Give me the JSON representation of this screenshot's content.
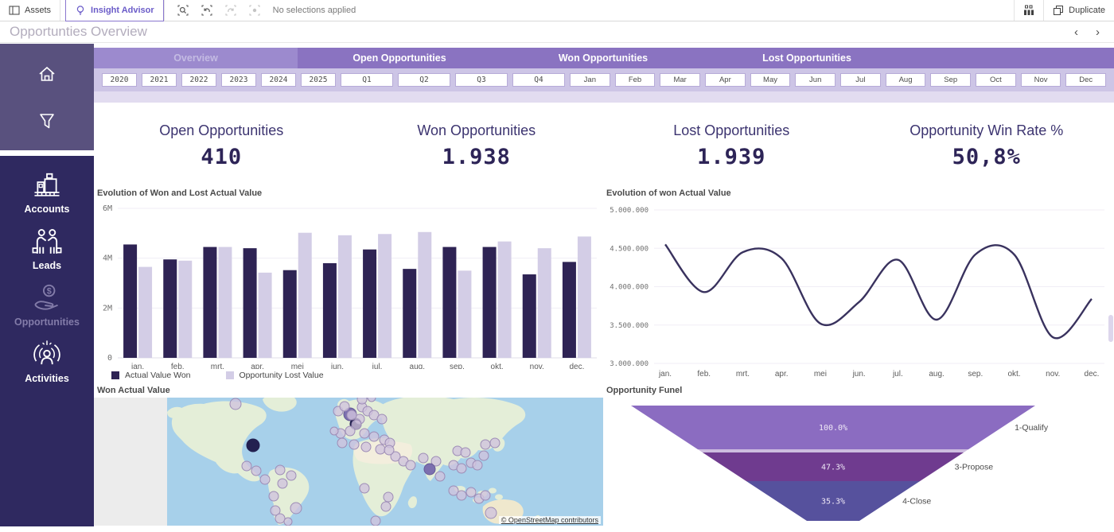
{
  "toolbar": {
    "assets_label": "Assets",
    "insight_label": "Insight Advisor",
    "no_selections": "No selections applied",
    "duplicate_label": "Duplicate",
    "selection_icons": [
      "search-selections",
      "step-back",
      "step-forward",
      "clear-selections"
    ]
  },
  "title_bar": {
    "title": "Opportunties Overview",
    "nav_prev": "‹",
    "nav_next": "›"
  },
  "sidebar": {
    "items": [
      {
        "label": "Accounts",
        "icon": "factory-icon",
        "active": false
      },
      {
        "label": "Leads",
        "icon": "handshake-icon",
        "active": false
      },
      {
        "label": "Opportunities",
        "icon": "hand-coin-icon",
        "active": true
      },
      {
        "label": "Activities",
        "icon": "person-target-icon",
        "active": false
      }
    ]
  },
  "tabs": [
    {
      "label": "Overview",
      "active": true
    },
    {
      "label": "Open Opportunities",
      "active": false
    },
    {
      "label": "Won Opportunities",
      "active": false
    },
    {
      "label": "Lost Opportunities",
      "active": false
    }
  ],
  "filters": {
    "years": [
      "2020",
      "2021",
      "2022",
      "2023",
      "2024",
      "2025"
    ],
    "quarters": [
      "Q1",
      "Q2",
      "Q3",
      "Q4"
    ],
    "months": [
      "Jan",
      "Feb",
      "Mar",
      "Apr",
      "May",
      "Jun",
      "Jul",
      "Aug",
      "Sep",
      "Oct",
      "Nov",
      "Dec"
    ]
  },
  "kpis": [
    {
      "label": "Open Opportunities",
      "value": "410"
    },
    {
      "label": "Won Opportunities",
      "value": "1.938"
    },
    {
      "label": "Lost Opportunities",
      "value": "1.939"
    },
    {
      "label": "Opportunity Win Rate %",
      "value": "50,8%"
    }
  ],
  "chart_data": [
    {
      "type": "bar",
      "title": "Evolution of Won and Lost Actual Value",
      "categories": [
        "jan.",
        "feb.",
        "mrt.",
        "apr.",
        "mei",
        "jun.",
        "jul.",
        "aug.",
        "sep.",
        "okt.",
        "nov.",
        "dec."
      ],
      "series": [
        {
          "name": "Actual Value Won",
          "color": "#2e2354",
          "values": [
            4550000,
            3950000,
            4450000,
            4400000,
            3520000,
            3800000,
            4350000,
            3570000,
            4450000,
            4450000,
            3350000,
            3850000
          ]
        },
        {
          "name": "Opportunity Lost Value",
          "color": "#d3cde6",
          "values": [
            3650000,
            3900000,
            4450000,
            3420000,
            5020000,
            4920000,
            4970000,
            5050000,
            3500000,
            4670000,
            4400000,
            4870000
          ]
        }
      ],
      "ylim": [
        0,
        6000000
      ],
      "yticks": [
        "0",
        "2M",
        "4M",
        "6M"
      ],
      "ytick_values": [
        0,
        2000000,
        4000000,
        6000000
      ],
      "grid": true,
      "legend_position": "bottom"
    },
    {
      "type": "line",
      "title": "Evolution of won Actual Value",
      "x": [
        "jan.",
        "feb.",
        "mrt.",
        "apr.",
        "mei",
        "jun.",
        "jul.",
        "aug.",
        "sep.",
        "okt.",
        "nov.",
        "dec."
      ],
      "values": [
        4550000,
        3930000,
        4450000,
        4370000,
        3520000,
        3800000,
        4350000,
        3570000,
        4420000,
        4420000,
        3340000,
        3840000
      ],
      "ylim": [
        3000000,
        5000000
      ],
      "yticks": [
        "5.000.000",
        "4.500.000",
        "4.000.000",
        "3.500.000",
        "3.000.000"
      ],
      "ytick_values": [
        5000000,
        4500000,
        4000000,
        3500000,
        3000000
      ],
      "color": "#39325e",
      "grid": true
    },
    {
      "type": "scatter",
      "title": "Won Actual Value",
      "attribution": "© OpenStreetMap contributors",
      "point_colors": {
        "normal": {
          "fill": "#cfc3dd",
          "stroke": "#9d8cb6",
          "opacity": 0.8
        },
        "dark": {
          "fill": "#232050",
          "stroke": "#232050",
          "opacity": 1
        },
        "middark": {
          "fill": "#7668ad",
          "stroke": "#655a96",
          "opacity": 0.95
        }
      },
      "points": [
        {
          "x": 86,
          "y": 8,
          "r": 7,
          "t": "normal"
        },
        {
          "x": 108,
          "y": 60,
          "r": 8,
          "t": "dark"
        },
        {
          "x": 100,
          "y": 86,
          "r": 6,
          "t": "normal"
        },
        {
          "x": 112,
          "y": 92,
          "r": 6,
          "t": "normal"
        },
        {
          "x": 123,
          "y": 103,
          "r": 6,
          "t": "normal"
        },
        {
          "x": 142,
          "y": 91,
          "r": 6,
          "t": "normal"
        },
        {
          "x": 156,
          "y": 98,
          "r": 6,
          "t": "normal"
        },
        {
          "x": 145,
          "y": 108,
          "r": 6,
          "t": "normal"
        },
        {
          "x": 134,
          "y": 124,
          "r": 6,
          "t": "normal"
        },
        {
          "x": 136,
          "y": 142,
          "r": 6,
          "t": "normal"
        },
        {
          "x": 162,
          "y": 139,
          "r": 7,
          "t": "normal"
        },
        {
          "x": 142,
          "y": 152,
          "r": 6,
          "t": "normal"
        },
        {
          "x": 152,
          "y": 156,
          "r": 5,
          "t": "normal"
        },
        {
          "x": 230,
          "y": 21,
          "r": 8,
          "t": "middark"
        },
        {
          "x": 237,
          "y": 33,
          "r": 7,
          "t": "dark"
        },
        {
          "x": 215,
          "y": 17,
          "r": 6,
          "t": "normal"
        },
        {
          "x": 223,
          "y": 11,
          "r": 6,
          "t": "normal"
        },
        {
          "x": 245,
          "y": 12,
          "r": 6,
          "t": "normal"
        },
        {
          "x": 252,
          "y": 17,
          "r": 6,
          "t": "normal"
        },
        {
          "x": 260,
          "y": 22,
          "r": 6,
          "t": "normal"
        },
        {
          "x": 270,
          "y": 27,
          "r": 6,
          "t": "normal"
        },
        {
          "x": 242,
          "y": 27,
          "r": 6,
          "t": "normal"
        },
        {
          "x": 232,
          "y": 22,
          "r": 6,
          "t": "normal"
        },
        {
          "x": 238,
          "y": 34,
          "r": 6,
          "t": "normal"
        },
        {
          "x": 230,
          "y": 42,
          "r": 6,
          "t": "normal"
        },
        {
          "x": 218,
          "y": 45,
          "r": 6,
          "t": "normal"
        },
        {
          "x": 248,
          "y": 45,
          "r": 6,
          "t": "normal"
        },
        {
          "x": 260,
          "y": 49,
          "r": 6,
          "t": "normal"
        },
        {
          "x": 273,
          "y": 53,
          "r": 6,
          "t": "normal"
        },
        {
          "x": 220,
          "y": 57,
          "r": 6,
          "t": "normal"
        },
        {
          "x": 235,
          "y": 59,
          "r": 6,
          "t": "normal"
        },
        {
          "x": 250,
          "y": 62,
          "r": 6,
          "t": "normal"
        },
        {
          "x": 268,
          "y": 65,
          "r": 6,
          "t": "normal"
        },
        {
          "x": 280,
          "y": 57,
          "r": 6,
          "t": "normal"
        },
        {
          "x": 210,
          "y": 42,
          "r": 5,
          "t": "normal"
        },
        {
          "x": 245,
          "y": 2,
          "r": 6,
          "t": "normal"
        },
        {
          "x": 257,
          "y": 0,
          "r": 5,
          "t": "normal"
        },
        {
          "x": 287,
          "y": 74,
          "r": 6,
          "t": "normal"
        },
        {
          "x": 297,
          "y": 80,
          "r": 6,
          "t": "normal"
        },
        {
          "x": 306,
          "y": 85,
          "r": 6,
          "t": "normal"
        },
        {
          "x": 279,
          "y": 66,
          "r": 6,
          "t": "normal"
        },
        {
          "x": 322,
          "y": 76,
          "r": 6,
          "t": "normal"
        },
        {
          "x": 338,
          "y": 80,
          "r": 6,
          "t": "normal"
        },
        {
          "x": 330,
          "y": 90,
          "r": 7,
          "t": "middark"
        },
        {
          "x": 343,
          "y": 99,
          "r": 6,
          "t": "normal"
        },
        {
          "x": 365,
          "y": 67,
          "r": 6,
          "t": "normal"
        },
        {
          "x": 375,
          "y": 69,
          "r": 6,
          "t": "normal"
        },
        {
          "x": 382,
          "y": 82,
          "r": 6,
          "t": "normal"
        },
        {
          "x": 360,
          "y": 85,
          "r": 6,
          "t": "normal"
        },
        {
          "x": 370,
          "y": 89,
          "r": 6,
          "t": "normal"
        },
        {
          "x": 390,
          "y": 85,
          "r": 6,
          "t": "normal"
        },
        {
          "x": 400,
          "y": 59,
          "r": 6,
          "t": "normal"
        },
        {
          "x": 412,
          "y": 57,
          "r": 6,
          "t": "normal"
        },
        {
          "x": 398,
          "y": 73,
          "r": 6,
          "t": "normal"
        },
        {
          "x": 360,
          "y": 117,
          "r": 6,
          "t": "normal"
        },
        {
          "x": 370,
          "y": 123,
          "r": 6,
          "t": "normal"
        },
        {
          "x": 382,
          "y": 119,
          "r": 6,
          "t": "normal"
        },
        {
          "x": 392,
          "y": 127,
          "r": 6,
          "t": "normal"
        },
        {
          "x": 400,
          "y": 123,
          "r": 6,
          "t": "normal"
        },
        {
          "x": 248,
          "y": 114,
          "r": 6,
          "t": "normal"
        },
        {
          "x": 278,
          "y": 125,
          "r": 6,
          "t": "normal"
        },
        {
          "x": 275,
          "y": 137,
          "r": 6,
          "t": "normal"
        },
        {
          "x": 262,
          "y": 155,
          "r": 6,
          "t": "normal"
        },
        {
          "x": 407,
          "y": 145,
          "r": 7,
          "t": "normal"
        }
      ]
    },
    {
      "type": "funnel",
      "title": "Opportunity Funel",
      "stages": [
        {
          "label": "1-Qualify",
          "percent": "100.0%",
          "color": "#8b6cc1"
        },
        {
          "label": "",
          "percent": "",
          "color": "#cdbcdf"
        },
        {
          "label": "3-Propose",
          "percent": "47.3%",
          "color": "#6f3b8f"
        },
        {
          "label": "4-Close",
          "percent": "35.3%",
          "color": "#56519d"
        }
      ]
    }
  ]
}
